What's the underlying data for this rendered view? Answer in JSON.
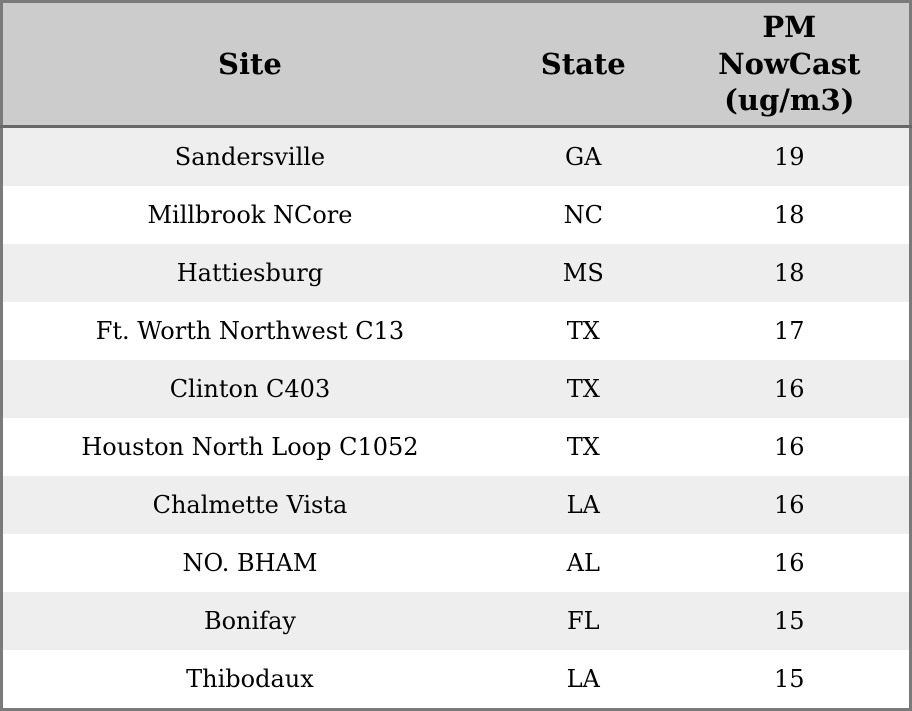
{
  "table": {
    "headers": {
      "site": "Site",
      "state": "State",
      "pm": "PM\nNowCast\n(ug/m3)"
    },
    "rows": [
      {
        "site": "Sandersville",
        "state": "GA",
        "pm": "19"
      },
      {
        "site": "Millbrook NCore",
        "state": "NC",
        "pm": "18"
      },
      {
        "site": "Hattiesburg",
        "state": "MS",
        "pm": "18"
      },
      {
        "site": "Ft. Worth Northwest C13",
        "state": "TX",
        "pm": "17"
      },
      {
        "site": "Clinton C403",
        "state": "TX",
        "pm": "16"
      },
      {
        "site": "Houston North Loop C1052",
        "state": "TX",
        "pm": "16"
      },
      {
        "site": "Chalmette Vista",
        "state": "LA",
        "pm": "16"
      },
      {
        "site": "NO. BHAM",
        "state": "AL",
        "pm": "16"
      },
      {
        "site": "Bonifay",
        "state": "FL",
        "pm": "15"
      },
      {
        "site": "Thibodaux",
        "state": "LA",
        "pm": "15"
      }
    ]
  },
  "colors": {
    "header_bg": "#cccccc",
    "row_alt_bg": "#eeeeee",
    "row_bg": "#ffffff",
    "outer_border": "#7a7a7a",
    "header_separator": "#686868",
    "text": "#000000"
  },
  "chart_data": {
    "type": "table",
    "title": "",
    "columns": [
      "Site",
      "State",
      "PM NowCast (ug/m3)"
    ],
    "rows": [
      [
        "Sandersville",
        "GA",
        19
      ],
      [
        "Millbrook NCore",
        "NC",
        18
      ],
      [
        "Hattiesburg",
        "MS",
        18
      ],
      [
        "Ft. Worth Northwest C13",
        "TX",
        17
      ],
      [
        "Clinton C403",
        "TX",
        16
      ],
      [
        "Houston North Loop C1052",
        "TX",
        16
      ],
      [
        "Chalmette Vista",
        "LA",
        16
      ],
      [
        "NO. BHAM",
        "AL",
        16
      ],
      [
        "Bonifay",
        "FL",
        15
      ],
      [
        "Thibodaux",
        "LA",
        15
      ]
    ]
  }
}
